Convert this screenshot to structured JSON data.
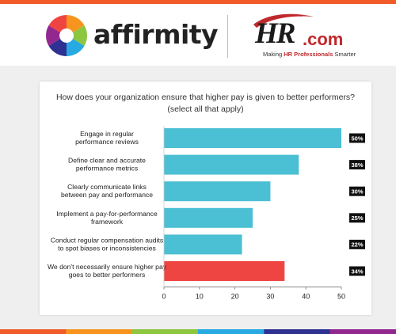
{
  "brand": {
    "affirmity_name": "affirmity",
    "hr_name": "HR",
    "hr_suffix": ".com",
    "hr_tagline_prefix": "Making ",
    "hr_tagline_bold": "HR Professionals",
    "hr_tagline_suffix": " Smarter"
  },
  "colors": {
    "bar": "#4bbfd3",
    "highlight_bar": "#ef4542",
    "label_box": "#111111",
    "top_bar": "#f15a29",
    "stripe": [
      "#f15a29",
      "#f7941d",
      "#8dc63f",
      "#27aae1",
      "#2e3192",
      "#92278f"
    ]
  },
  "chart_data": {
    "type": "bar",
    "orientation": "horizontal",
    "title": "How does your organization ensure that higher pay is given to better performers? (select all that apply)",
    "categories": [
      [
        "Engage in regular",
        "performance reviews"
      ],
      [
        "Define clear and accurate",
        "performance metrics"
      ],
      [
        "Clearly communicate links",
        "between pay and performance"
      ],
      [
        "Implement a pay-for-performance",
        "framework"
      ],
      [
        "Conduct regular compensation audits",
        "to spot biases or inconsistencies"
      ],
      [
        "We don't necessarily ensure higher pay",
        "goes to better performers"
      ]
    ],
    "values": [
      50,
      38,
      30,
      25,
      22,
      34
    ],
    "value_labels": [
      "50%",
      "38%",
      "30%",
      "25%",
      "22%",
      "34%"
    ],
    "highlight_index": 5,
    "xlim": [
      0,
      50
    ],
    "xticks": [
      "0",
      "10",
      "20",
      "30",
      "40",
      "50"
    ],
    "grid": false,
    "legend": "none"
  }
}
